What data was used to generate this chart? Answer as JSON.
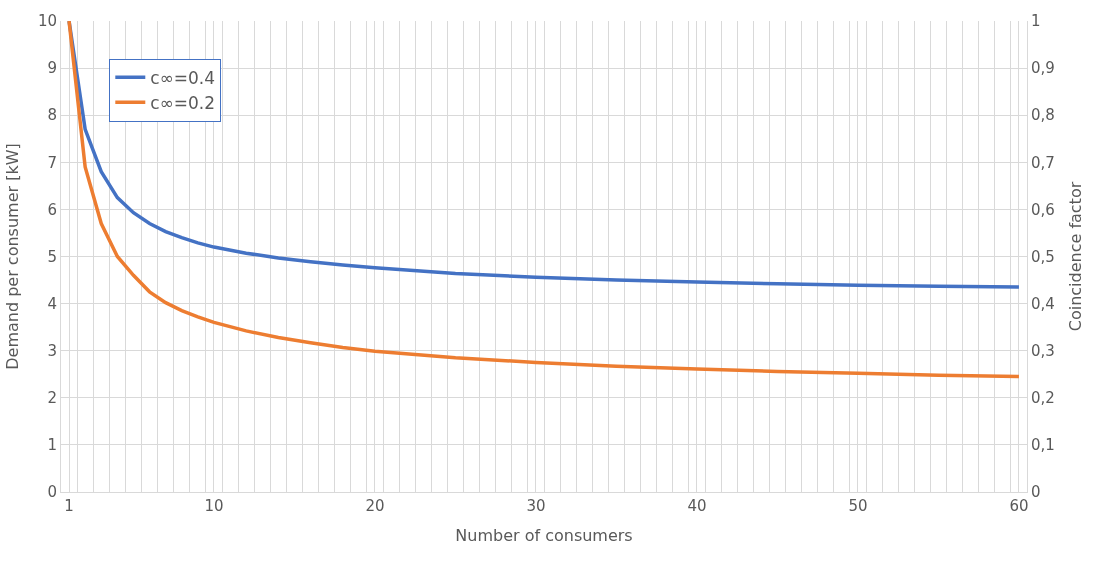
{
  "chart_data": {
    "type": "line",
    "xlabel": "Number of consumers",
    "ylabel": "Demand per consumer [kW]",
    "y2label": "Coincidence factor",
    "xlim": [
      0.5,
      60.5
    ],
    "ylim": [
      0,
      10
    ],
    "yticks": [
      0,
      1,
      2,
      3,
      4,
      5,
      6,
      7,
      8,
      9,
      10
    ],
    "y2lim": [
      0,
      1
    ],
    "y2ticks": [
      {
        "value": 0,
        "label": "0"
      },
      {
        "value": 0.1,
        "label": "0,1"
      },
      {
        "value": 0.2,
        "label": "0,2"
      },
      {
        "value": 0.3,
        "label": "0,3"
      },
      {
        "value": 0.4,
        "label": "0,4"
      },
      {
        "value": 0.5,
        "label": "0,5"
      },
      {
        "value": 0.6,
        "label": "0,6"
      },
      {
        "value": 0.7,
        "label": "0,7"
      },
      {
        "value": 0.8,
        "label": "0,8"
      },
      {
        "value": 0.9,
        "label": "0,9"
      },
      {
        "value": 1,
        "label": "1"
      }
    ],
    "xticks": [
      1,
      10,
      20,
      30,
      40,
      50,
      60,
      {
        "value": 1.5,
        "label": null
      },
      {
        "value": 2.5,
        "label": null
      },
      {
        "value": 3.5,
        "label": null
      },
      {
        "value": 4.5,
        "label": null
      },
      {
        "value": 5.5,
        "label": null
      },
      {
        "value": 6.5,
        "label": null
      },
      {
        "value": 7.5,
        "label": null
      },
      {
        "value": 8.5,
        "label": null
      },
      {
        "value": 9.5,
        "label": null
      },
      {
        "value": 10.5,
        "label": null
      },
      {
        "value": 11.5,
        "label": null
      },
      {
        "value": 12.5,
        "label": null
      },
      {
        "value": 13.5,
        "label": null
      },
      {
        "value": 14.5,
        "label": null
      },
      {
        "value": 15.5,
        "label": null
      },
      {
        "value": 16.5,
        "label": null
      },
      {
        "value": 17.5,
        "label": null
      },
      {
        "value": 18.5,
        "label": null
      },
      {
        "value": 19.5,
        "label": null
      },
      {
        "value": 20.5,
        "label": null
      },
      {
        "value": 21.5,
        "label": null
      },
      {
        "value": 22.5,
        "label": null
      },
      {
        "value": 23.5,
        "label": null
      },
      {
        "value": 24.5,
        "label": null
      },
      {
        "value": 25.5,
        "label": null
      },
      {
        "value": 26.5,
        "label": null
      },
      {
        "value": 27.5,
        "label": null
      },
      {
        "value": 28.5,
        "label": null
      },
      {
        "value": 29.5,
        "label": null
      },
      {
        "value": 30.5,
        "label": null
      },
      {
        "value": 31.5,
        "label": null
      },
      {
        "value": 32.5,
        "label": null
      },
      {
        "value": 33.5,
        "label": null
      },
      {
        "value": 34.5,
        "label": null
      },
      {
        "value": 35.5,
        "label": null
      },
      {
        "value": 36.5,
        "label": null
      },
      {
        "value": 37.5,
        "label": null
      },
      {
        "value": 38.5,
        "label": null
      },
      {
        "value": 39.5,
        "label": null
      },
      {
        "value": 40.5,
        "label": null
      },
      {
        "value": 41.5,
        "label": null
      },
      {
        "value": 42.5,
        "label": null
      },
      {
        "value": 43.5,
        "label": null
      },
      {
        "value": 44.5,
        "label": null
      },
      {
        "value": 45.5,
        "label": null
      },
      {
        "value": 46.5,
        "label": null
      },
      {
        "value": 47.5,
        "label": null
      },
      {
        "value": 48.5,
        "label": null
      },
      {
        "value": 49.5,
        "label": null
      },
      {
        "value": 50.5,
        "label": null
      },
      {
        "value": 51.5,
        "label": null
      },
      {
        "value": 52.5,
        "label": null
      },
      {
        "value": 53.5,
        "label": null
      },
      {
        "value": 54.5,
        "label": null
      },
      {
        "value": 55.5,
        "label": null
      },
      {
        "value": 56.5,
        "label": null
      },
      {
        "value": 57.5,
        "label": null
      },
      {
        "value": 58.5,
        "label": null
      },
      {
        "value": 59.5,
        "label": null
      }
    ],
    "x": [
      1,
      2,
      3,
      4,
      5,
      6,
      7,
      8,
      9,
      10,
      12,
      14,
      16,
      18,
      20,
      25,
      30,
      35,
      40,
      45,
      50,
      55,
      60
    ],
    "series": [
      {
        "name": "c∞=0.4",
        "color": "#4472c4",
        "values": [
          10,
          7.7,
          6.8,
          6.25,
          5.93,
          5.7,
          5.53,
          5.4,
          5.29,
          5.2,
          5.07,
          4.97,
          4.89,
          4.82,
          4.76,
          4.64,
          4.56,
          4.5,
          4.46,
          4.42,
          4.39,
          4.37,
          4.35
        ]
      },
      {
        "name": "c∞=0.2",
        "color": "#ed7d31",
        "values": [
          10,
          6.9,
          5.7,
          5.0,
          4.6,
          4.25,
          4.02,
          3.85,
          3.72,
          3.6,
          3.42,
          3.28,
          3.17,
          3.07,
          2.99,
          2.85,
          2.75,
          2.67,
          2.61,
          2.56,
          2.52,
          2.48,
          2.45
        ]
      }
    ],
    "grid": true,
    "legend": "top left",
    "marker": "none",
    "line_style": "solid"
  }
}
